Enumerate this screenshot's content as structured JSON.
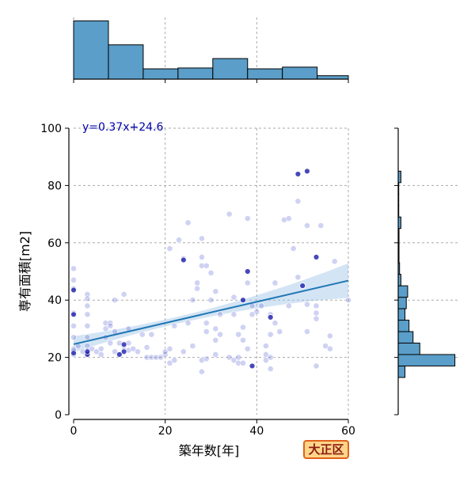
{
  "badge": {
    "label": "大正区",
    "bg": "#ffd58a",
    "border": "#e0621b",
    "text": "#8a1c12"
  },
  "chart_data": [
    {
      "id": "main-scatter",
      "type": "scatter",
      "title": "",
      "xlabel": "築年数[年]",
      "ylabel": "専有面積[m2]",
      "xlim": [
        0,
        60
      ],
      "ylim": [
        0,
        100
      ],
      "xticks": [
        0,
        20,
        40,
        60
      ],
      "yticks": [
        0,
        20,
        40,
        60,
        80,
        100
      ],
      "grid": true,
      "point_color": "#6b74d6",
      "dense_color": "#1a1aa8",
      "regression": {
        "equation": "y=0.37x+24.6",
        "slope": 0.37,
        "intercept": 24.6,
        "color": "#1f77b4",
        "band_color": "#9ec3e6",
        "label_color": "#0000aa"
      },
      "points": [
        [
          0,
          51
        ],
        [
          0,
          47
        ],
        [
          0,
          43.5
        ],
        [
          0,
          35
        ],
        [
          0,
          31
        ],
        [
          0,
          27
        ],
        [
          0,
          23
        ],
        [
          0,
          22
        ],
        [
          0,
          21
        ],
        [
          0,
          44
        ],
        [
          0,
          35.5
        ],
        [
          0,
          22.5
        ],
        [
          3,
          42
        ],
        [
          3,
          40.5
        ],
        [
          3,
          38
        ],
        [
          3,
          35
        ],
        [
          3,
          31
        ],
        [
          3,
          27
        ],
        [
          3,
          24
        ],
        [
          3,
          22
        ],
        [
          3,
          21
        ],
        [
          3,
          22.5
        ],
        [
          3,
          21.5
        ],
        [
          2,
          22
        ],
        [
          5,
          22
        ],
        [
          6,
          23
        ],
        [
          7,
          30
        ],
        [
          7,
          32
        ],
        [
          7,
          27
        ],
        [
          8,
          32
        ],
        [
          8,
          31
        ],
        [
          8,
          25
        ],
        [
          9,
          40
        ],
        [
          9,
          29
        ],
        [
          9,
          22
        ],
        [
          10,
          25
        ],
        [
          10,
          21
        ],
        [
          11,
          24
        ],
        [
          11,
          22.5
        ],
        [
          11,
          42
        ],
        [
          12,
          30
        ],
        [
          12,
          25
        ],
        [
          12,
          22.5
        ],
        [
          14,
          22
        ],
        [
          16,
          20
        ],
        [
          16,
          23.5
        ],
        [
          17,
          28
        ],
        [
          17,
          20
        ],
        [
          18,
          20
        ],
        [
          19,
          20
        ],
        [
          20,
          21
        ],
        [
          20,
          22
        ],
        [
          21,
          18
        ],
        [
          21,
          58
        ],
        [
          21,
          23
        ],
        [
          22,
          31
        ],
        [
          22,
          19
        ],
        [
          23,
          61
        ],
        [
          24,
          54
        ],
        [
          24,
          54.5
        ],
        [
          25,
          67
        ],
        [
          26,
          24
        ],
        [
          27,
          46
        ],
        [
          27,
          44
        ],
        [
          28,
          61.5
        ],
        [
          28,
          55
        ],
        [
          28,
          52
        ],
        [
          28,
          19
        ],
        [
          28,
          15
        ],
        [
          29,
          29
        ],
        [
          29,
          32
        ],
        [
          29,
          19.5
        ],
        [
          29,
          52
        ],
        [
          30,
          49.5
        ],
        [
          31,
          43
        ],
        [
          31,
          30
        ],
        [
          31,
          26
        ],
        [
          31,
          21
        ],
        [
          34,
          70
        ],
        [
          34,
          20
        ],
        [
          35,
          41
        ],
        [
          35,
          35
        ],
        [
          35,
          19
        ],
        [
          36,
          28
        ],
        [
          36,
          20
        ],
        [
          36,
          18
        ],
        [
          37,
          40
        ],
        [
          37,
          30.5
        ],
        [
          37,
          26
        ],
        [
          37,
          18
        ],
        [
          38,
          68.5
        ],
        [
          38,
          50
        ],
        [
          38,
          46
        ],
        [
          38,
          23
        ],
        [
          39,
          35
        ],
        [
          39,
          17
        ],
        [
          40,
          36
        ],
        [
          42,
          19
        ],
        [
          42,
          24
        ],
        [
          42,
          21
        ],
        [
          43,
          35
        ],
        [
          43,
          34
        ],
        [
          43,
          28
        ],
        [
          43,
          16
        ],
        [
          43,
          20
        ],
        [
          44,
          46
        ],
        [
          45,
          29
        ],
        [
          46,
          68
        ],
        [
          47,
          68.5
        ],
        [
          48,
          58
        ],
        [
          49,
          48
        ],
        [
          49,
          74.5
        ],
        [
          49,
          84
        ],
        [
          50,
          45
        ],
        [
          51,
          85
        ],
        [
          51,
          66
        ],
        [
          51,
          38.5
        ],
        [
          51,
          29
        ],
        [
          53,
          55
        ],
        [
          53,
          38
        ],
        [
          53,
          35.5
        ],
        [
          53,
          33.5
        ],
        [
          53,
          17
        ],
        [
          54,
          66
        ],
        [
          55,
          24
        ],
        [
          56,
          23
        ],
        [
          56,
          27.5
        ],
        [
          57,
          53.5
        ],
        [
          60,
          40
        ],
        [
          47,
          38
        ],
        [
          44,
          32
        ],
        [
          41,
          38
        ],
        [
          39,
          38
        ],
        [
          32,
          28
        ],
        [
          32,
          35
        ],
        [
          30,
          40
        ],
        [
          26,
          40
        ],
        [
          25,
          32
        ],
        [
          24,
          22
        ],
        [
          15,
          28
        ],
        [
          13,
          23
        ],
        [
          6,
          21
        ],
        [
          4,
          23
        ],
        [
          1,
          24
        ]
      ],
      "dense_points": [
        [
          0,
          21.5
        ],
        [
          0,
          35
        ],
        [
          0,
          43.5
        ],
        [
          3,
          21
        ],
        [
          3,
          22
        ],
        [
          10,
          21
        ],
        [
          11,
          22
        ],
        [
          11,
          24.5
        ],
        [
          38,
          50
        ],
        [
          37,
          40
        ],
        [
          49,
          84
        ],
        [
          51,
          85
        ],
        [
          50,
          45
        ],
        [
          43,
          34
        ],
        [
          39,
          17
        ],
        [
          53,
          55
        ],
        [
          24,
          54
        ]
      ]
    },
    {
      "id": "top-histogram",
      "type": "bar",
      "title": "",
      "xlabel": "",
      "ylabel": "",
      "bin_edges": [
        0,
        7.6,
        15.2,
        22.8,
        30.4,
        38,
        45.6,
        53.2,
        60
      ],
      "values": [
        34,
        20,
        6,
        6.5,
        12,
        6,
        7,
        2
      ],
      "ymax": 36,
      "bar_color": "#5a9ec9"
    },
    {
      "id": "right-histogram",
      "type": "bar",
      "orientation": "horizontal",
      "title": "",
      "xlabel": "",
      "ylabel": "",
      "bin_edges": [
        13,
        17,
        21,
        25,
        29,
        33,
        37,
        41,
        45,
        49,
        53,
        57,
        61,
        65,
        69,
        73,
        77,
        81,
        85
      ],
      "values": [
        2.5,
        21,
        8,
        5.5,
        4,
        2.5,
        3,
        3.5,
        1,
        0.5,
        0.3,
        0.3,
        0.3,
        1,
        0.2,
        0.2,
        0.2,
        1
      ],
      "xmax": 22,
      "bar_color": "#5a9ec9"
    }
  ]
}
